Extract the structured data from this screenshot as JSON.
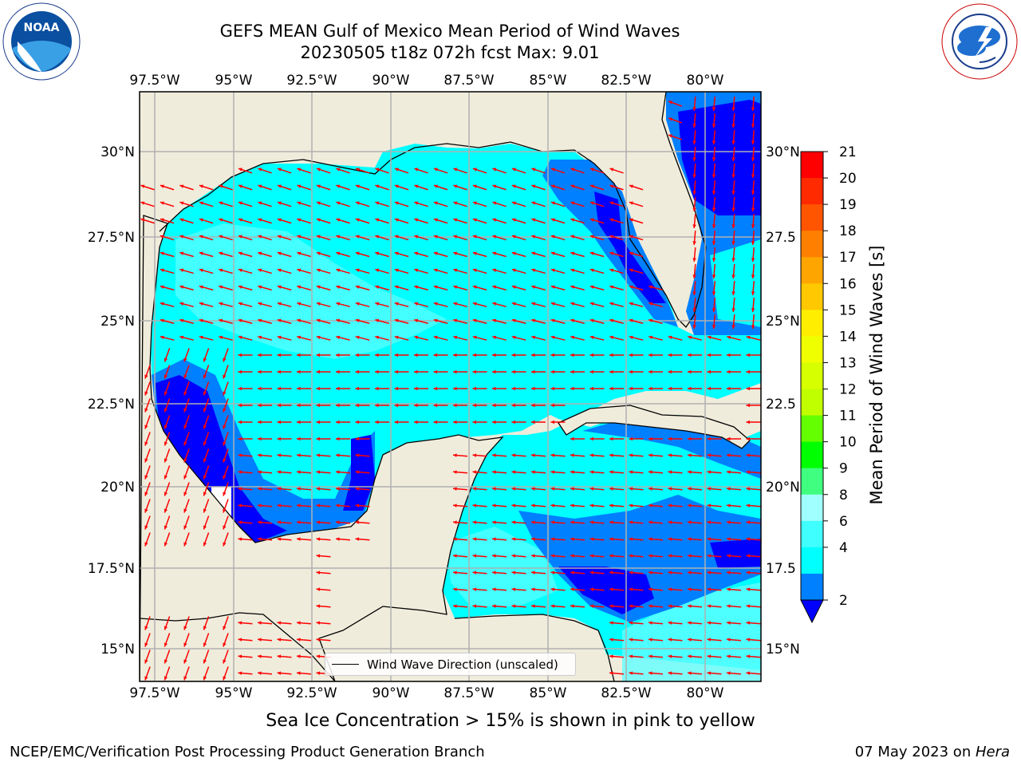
{
  "header": {
    "title_line1": "GEFS MEAN Gulf of Mexico Mean Period of Wind Waves",
    "title_line2": "20230505 t18z 072h fcst   Max: 9.01"
  },
  "map": {
    "lon_ticks": [
      "97.5°W",
      "95°W",
      "92.5°W",
      "90°W",
      "87.5°W",
      "85°W",
      "82.5°W",
      "80°W"
    ],
    "lat_ticks_left": [
      "30°N",
      "27.5°N",
      "25°N",
      "22.5°N",
      "20°N",
      "17.5°N",
      "15°N"
    ],
    "lat_ticks_right": [
      "30°N",
      "27.5",
      "25°N",
      "22.5",
      "20°N",
      "17.5",
      "15°N"
    ],
    "legend_label": "Wind Wave Direction (unscaled)",
    "colors": {
      "land": "#efecdc",
      "arrow": "#ff0000",
      "grid": "#b0b0b0",
      "band_2_4": "#0080ff",
      "band_4_6": "#00ffff",
      "band_6_8": "#60ffff",
      "band_low": "#0000ff"
    }
  },
  "colorbar": {
    "label": "Mean Period of Wind Waves [s]",
    "ticks": [
      "21",
      "20",
      "19",
      "18",
      "17",
      "16",
      "15",
      "14",
      "13",
      "12",
      "11",
      "10",
      "9",
      "8",
      "6",
      "4",
      "2"
    ],
    "colors": [
      "#ff0000",
      "#ff2a00",
      "#ff5500",
      "#ff8000",
      "#ffa500",
      "#ffc800",
      "#ffee00",
      "#f0ff00",
      "#d6ff00",
      "#c0ff00",
      "#64ff00",
      "#00ff00",
      "#40ff80",
      "#a0ffff",
      "#40ffff",
      "#00ffff",
      "#0080ff"
    ],
    "extend_color": "#0000ff"
  },
  "subtitle": "Sea Ice Concentration > 15% is shown in pink to yellow",
  "footer": {
    "left": "NCEP/EMC/Verification Post Processing Product Generation Branch",
    "right_date": "07 May 2023 on ",
    "right_host": "Hera"
  },
  "logos": {
    "left_name": "NOAA",
    "right_name": "NATIONAL WEATHER SERVICE"
  }
}
